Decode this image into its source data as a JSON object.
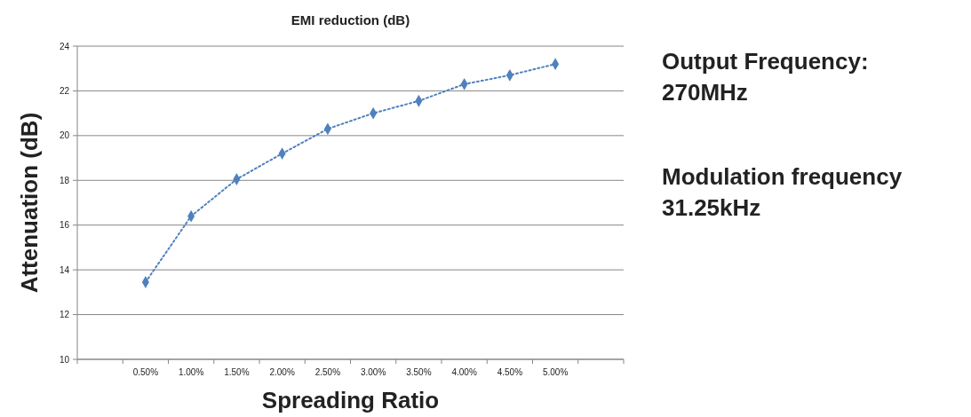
{
  "chart_data": {
    "type": "line",
    "title": "EMI reduction (dB)",
    "xlabel": "Spreading Ratio",
    "ylabel": "Attenuation (dB)",
    "categories": [
      "0.50%",
      "1.00%",
      "1.50%",
      "2.00%",
      "2.50%",
      "3.00%",
      "3.50%",
      "4.00%",
      "4.50%",
      "5.00%"
    ],
    "series": [
      {
        "color": "#4f81bd",
        "values": [
          13.45,
          16.4,
          18.05,
          19.2,
          20.3,
          21.0,
          21.55,
          22.3,
          22.7,
          23.2
        ]
      }
    ],
    "ylim": [
      10,
      24
    ],
    "yticks": [
      10,
      12,
      14,
      16,
      18,
      20,
      22,
      24
    ],
    "grid": "y",
    "marker": "diamond",
    "line_style": "dotted",
    "annotations": [
      "Output Frequency:\n270MHz",
      "Modulation frequency\n31.25kHz"
    ]
  }
}
